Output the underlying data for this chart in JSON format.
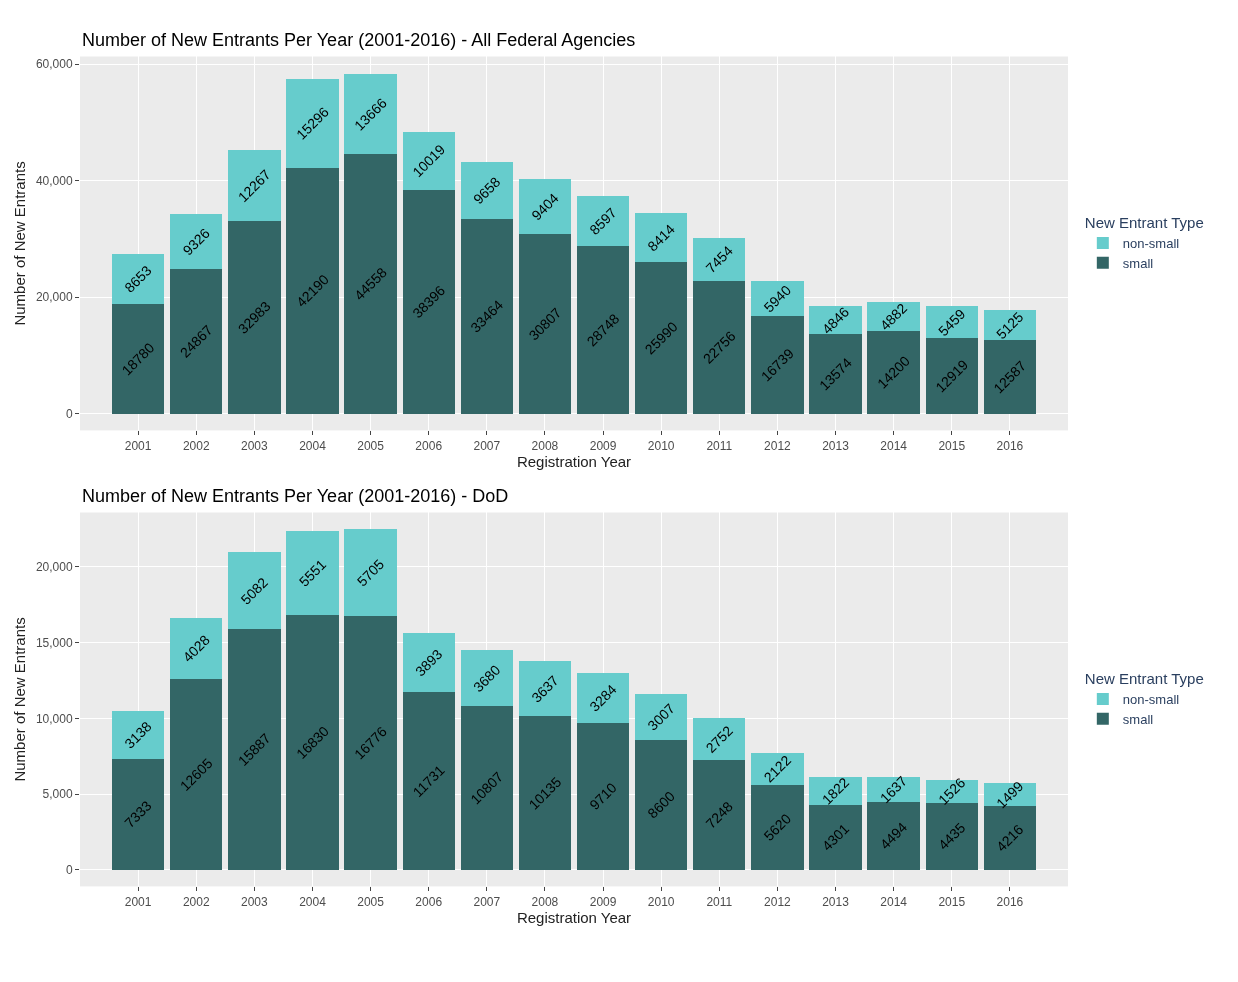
{
  "chart_data": [
    {
      "type": "bar",
      "stacked": true,
      "title": "Number of New Entrants Per Year (2001-2016) - All Federal Agencies",
      "xlabel": "Registration Year",
      "ylabel": "Number of New Entrants",
      "legend_title": "New Entrant Type",
      "legend": "right",
      "grid": true,
      "data_labels": true,
      "categories": [
        "2001",
        "2002",
        "2003",
        "2004",
        "2005",
        "2006",
        "2007",
        "2008",
        "2009",
        "2010",
        "2011",
        "2012",
        "2013",
        "2014",
        "2015",
        "2016"
      ],
      "series": [
        {
          "name": "small",
          "color": "#336666",
          "values": [
            18780,
            24867,
            32983,
            42190,
            44558,
            38396,
            33464,
            30807,
            28748,
            25990,
            22756,
            16739,
            13574,
            14200,
            12919,
            12587
          ]
        },
        {
          "name": "non-small",
          "color": "#66cccc",
          "values": [
            8653,
            9326,
            12267,
            15296,
            13666,
            10019,
            9658,
            9404,
            8597,
            8414,
            7454,
            5940,
            4846,
            4882,
            5459,
            5125
          ]
        }
      ],
      "ylim": [
        -2900,
        61300
      ],
      "yticks": [
        0,
        {
          "value": 20000,
          "label": "20,000"
        },
        {
          "value": 40000,
          "label": "40,000"
        },
        {
          "value": 60000,
          "label": "60,000"
        }
      ]
    },
    {
      "type": "bar",
      "stacked": true,
      "title": "Number of New Entrants Per Year (2001-2016) - DoD",
      "xlabel": "Registration Year",
      "ylabel": "Number of New Entrants",
      "legend_title": "New Entrant Type",
      "legend": "right",
      "grid": true,
      "data_labels": true,
      "categories": [
        "2001",
        "2002",
        "2003",
        "2004",
        "2005",
        "2006",
        "2007",
        "2008",
        "2009",
        "2010",
        "2011",
        "2012",
        "2013",
        "2014",
        "2015",
        "2016"
      ],
      "series": [
        {
          "name": "small",
          "color": "#336666",
          "values": [
            7333,
            12605,
            15887,
            16830,
            16776,
            11731,
            10807,
            10135,
            9710,
            8600,
            7248,
            5620,
            4301,
            4494,
            4435,
            4216
          ]
        },
        {
          "name": "non-small",
          "color": "#66cccc",
          "values": [
            3138,
            4028,
            5082,
            5551,
            5705,
            3893,
            3680,
            3637,
            3284,
            3007,
            2752,
            2122,
            1822,
            1637,
            1526,
            1499
          ]
        }
      ],
      "ylim": [
        -1100,
        23600
      ],
      "yticks": [
        0,
        {
          "value": 5000,
          "label": "5,000"
        },
        {
          "value": 10000,
          "label": "10,000"
        },
        {
          "value": 15000,
          "label": "15,000"
        },
        {
          "value": 20000,
          "label": "20,000"
        }
      ]
    }
  ]
}
